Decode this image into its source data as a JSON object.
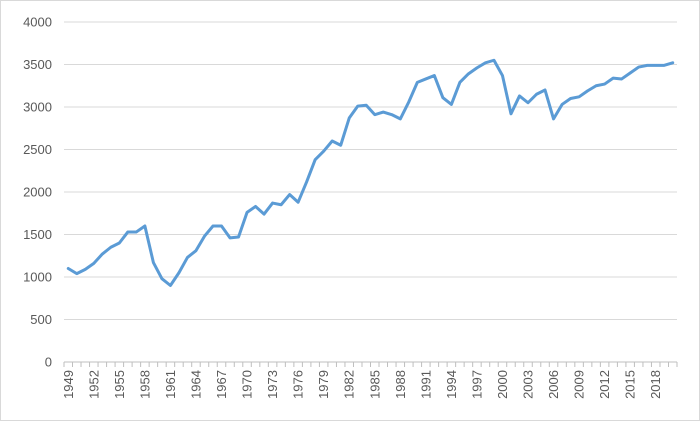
{
  "chart_data": {
    "type": "line",
    "title": "",
    "xlabel": "",
    "ylabel": "",
    "ylim": [
      0,
      4000
    ],
    "yticks": [
      0,
      500,
      1000,
      1500,
      2000,
      2500,
      3000,
      3500,
      4000
    ],
    "xtick_labels": [
      "1949",
      "1952",
      "1955",
      "1958",
      "1961",
      "1964",
      "1967",
      "1970",
      "1973",
      "1976",
      "1979",
      "1982",
      "1985",
      "1988",
      "1991",
      "1994",
      "1997",
      "2000",
      "2003",
      "2006",
      "2009",
      "2012",
      "2015",
      "2018"
    ],
    "grid": "horizontal",
    "legend": "none",
    "series": [
      {
        "color": "#5b9bd5",
        "x": [
          1949,
          1950,
          1951,
          1952,
          1953,
          1954,
          1955,
          1956,
          1957,
          1958,
          1959,
          1960,
          1961,
          1962,
          1963,
          1964,
          1965,
          1966,
          1967,
          1968,
          1969,
          1970,
          1971,
          1972,
          1973,
          1974,
          1975,
          1976,
          1977,
          1978,
          1979,
          1980,
          1981,
          1982,
          1983,
          1984,
          1985,
          1986,
          1987,
          1988,
          1989,
          1990,
          1991,
          1992,
          1993,
          1994,
          1995,
          1996,
          1997,
          1998,
          1999,
          2000,
          2001,
          2002,
          2003,
          2004,
          2005,
          2006,
          2007,
          2008,
          2009,
          2010,
          2011,
          2012,
          2013,
          2014,
          2015,
          2016,
          2017,
          2018,
          2019,
          2020
        ],
        "values": [
          1100,
          1040,
          1090,
          1160,
          1270,
          1350,
          1400,
          1530,
          1530,
          1600,
          1170,
          980,
          900,
          1050,
          1230,
          1310,
          1480,
          1600,
          1600,
          1460,
          1470,
          1760,
          1830,
          1740,
          1870,
          1850,
          1970,
          1880,
          2120,
          2380,
          2480,
          2600,
          2550,
          2870,
          3010,
          3020,
          2910,
          2940,
          2910,
          2860,
          3060,
          3290,
          3330,
          3370,
          3110,
          3030,
          3290,
          3390,
          3460,
          3520,
          3550,
          3370,
          2920,
          3130,
          3050,
          3150,
          3200,
          2860,
          3030,
          3100,
          3120,
          3190,
          3250,
          3270,
          3340,
          3330,
          3400,
          3470,
          3490,
          3490,
          3490,
          3520
        ]
      }
    ]
  }
}
